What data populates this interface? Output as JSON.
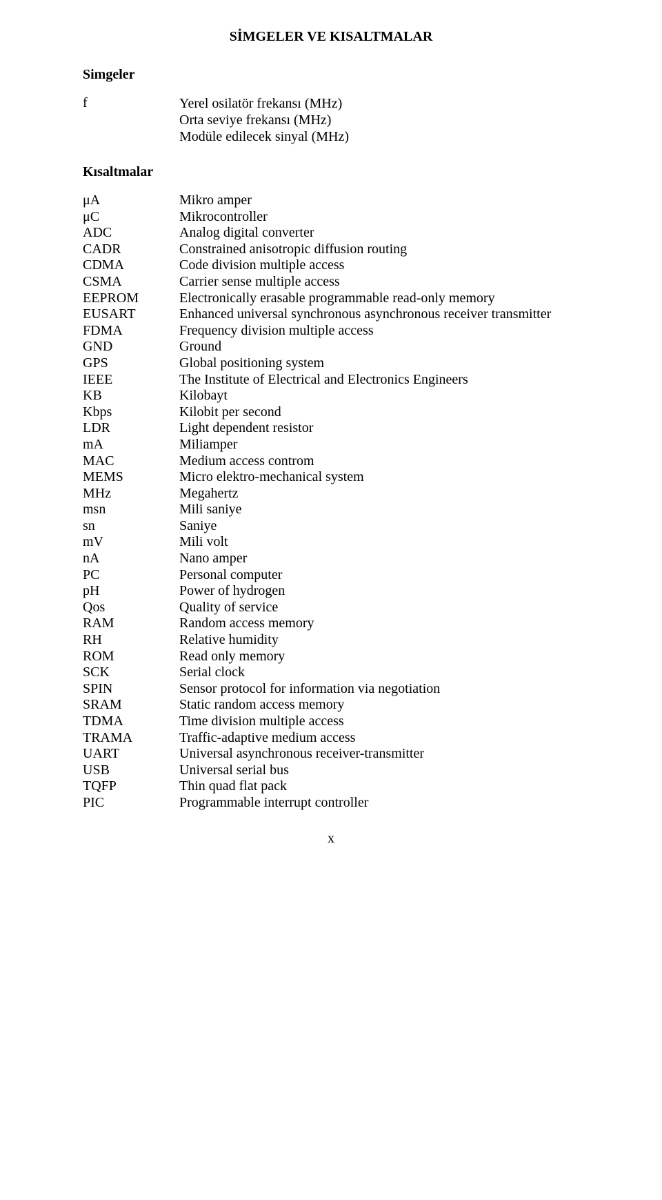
{
  "title": "SİMGELER VE KISALTMALAR",
  "symbols_heading": "Simgeler",
  "f_symbol": "f",
  "f_lines": [
    "Yerel osilatör frekansı (MHz)",
    "Orta seviye frekansı (MHz)",
    "Modüle edilecek sinyal (MHz)"
  ],
  "abbrev_heading": "Kısaltmalar",
  "rows": [
    {
      "a": "μA",
      "d": "Mikro amper"
    },
    {
      "a": "μC",
      "d": "Mikrocontroller"
    },
    {
      "a": "ADC",
      "d": "Analog digital converter"
    },
    {
      "a": "CADR",
      "d": "Constrained anisotropic diffusion routing"
    },
    {
      "a": "CDMA",
      "d": "Code division multiple access"
    },
    {
      "a": "CSMA",
      "d": "Carrier sense multiple access"
    },
    {
      "a": "EEPROM",
      "d": "Electronically erasable programmable read-only memory"
    },
    {
      "a": "EUSART",
      "d": "Enhanced universal synchronous asynchronous receiver transmitter"
    },
    {
      "a": "FDMA",
      "d": "Frequency division multiple access"
    },
    {
      "a": "GND",
      "d": "Ground"
    },
    {
      "a": "GPS",
      "d": "Global positioning system"
    },
    {
      "a": "IEEE",
      "d": "The Institute of Electrical and Electronics Engineers"
    },
    {
      "a": "KB",
      "d": "Kilobayt"
    },
    {
      "a": "Kbps",
      "d": "Kilobit per second"
    },
    {
      "a": "LDR",
      "d": "Light dependent resistor"
    },
    {
      "a": "mA",
      "d": "Miliamper"
    },
    {
      "a": "MAC",
      "d": "Medium access controm"
    },
    {
      "a": "MEMS",
      "d": "Micro elektro-mechanical system"
    },
    {
      "a": "MHz",
      "d": "Megahertz"
    },
    {
      "a": "msn",
      "d": "Mili saniye"
    },
    {
      "a": "sn",
      "d": "Saniye"
    },
    {
      "a": "mV",
      "d": "Mili volt"
    },
    {
      "a": "nA",
      "d": "Nano amper"
    },
    {
      "a": "PC",
      "d": "Personal computer"
    },
    {
      "a": "pH",
      "d": "Power of hydrogen"
    },
    {
      "a": "Qos",
      "d": "Quality of service"
    },
    {
      "a": "RAM",
      "d": "Random access memory"
    },
    {
      "a": "RH",
      "d": "Relative humidity"
    },
    {
      "a": "ROM",
      "d": "Read only memory"
    },
    {
      "a": "SCK",
      "d": "Serial clock"
    },
    {
      "a": "SPIN",
      "d": "Sensor protocol for information via negotiation"
    },
    {
      "a": "SRAM",
      "d": "Static random access memory"
    },
    {
      "a": "TDMA",
      "d": "Time division multiple access"
    },
    {
      "a": "TRAMA",
      "d": "Traffic-adaptive medium access"
    },
    {
      "a": "UART",
      "d": "Universal asynchronous receiver-transmitter"
    },
    {
      "a": "USB",
      "d": "Universal serial bus"
    },
    {
      "a": "TQFP",
      "d": "Thin quad flat pack"
    },
    {
      "a": "PIC",
      "d": "Programmable interrupt controller"
    }
  ],
  "page_number": "x"
}
